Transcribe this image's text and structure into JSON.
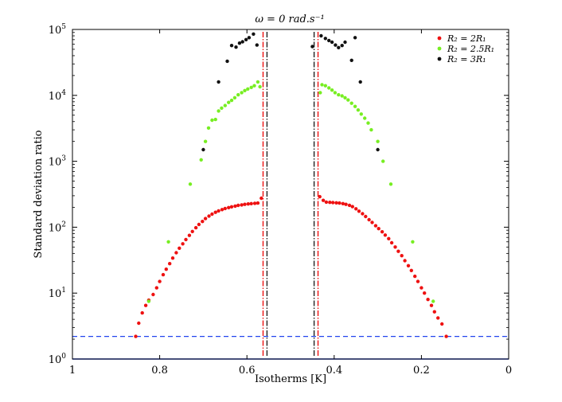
{
  "chart_data": {
    "type": "scatter",
    "title": "ω = 0 rad.s⁻¹",
    "xlabel": "Isotherms [K]",
    "ylabel": "Standard deviation ratio",
    "xlim": [
      1,
      0
    ],
    "ylim": [
      1,
      100000
    ],
    "yscale": "log",
    "xticks": [
      {
        "value": 1,
        "label": "1"
      },
      {
        "value": 0.8,
        "label": "0.8"
      },
      {
        "value": 0.6,
        "label": "0.6"
      },
      {
        "value": 0.4,
        "label": "0.4"
      },
      {
        "value": 0.2,
        "label": "0.2"
      },
      {
        "value": 0,
        "label": "0"
      }
    ],
    "yticks": [
      {
        "value": 1,
        "base": "10",
        "exp": "0"
      },
      {
        "value": 10,
        "base": "10",
        "exp": "1"
      },
      {
        "value": 100,
        "base": "10",
        "exp": "2"
      },
      {
        "value": 1000,
        "base": "10",
        "exp": "3"
      },
      {
        "value": 10000,
        "base": "10",
        "exp": "4"
      },
      {
        "value": 100000,
        "base": "10",
        "exp": "5"
      }
    ],
    "grid": false,
    "legend_position": "top-right",
    "series": [
      {
        "name": "R₂ = 2R₁",
        "color": "#ee1111",
        "points": [
          [
            0.855,
            2.2
          ],
          [
            0.848,
            3.5
          ],
          [
            0.84,
            5.0
          ],
          [
            0.832,
            6.5
          ],
          [
            0.825,
            7.8
          ],
          [
            0.815,
            9.5
          ],
          [
            0.807,
            12
          ],
          [
            0.8,
            15
          ],
          [
            0.792,
            19
          ],
          [
            0.785,
            23
          ],
          [
            0.777,
            28
          ],
          [
            0.77,
            34
          ],
          [
            0.762,
            41
          ],
          [
            0.755,
            48
          ],
          [
            0.747,
            56
          ],
          [
            0.74,
            65
          ],
          [
            0.732,
            75
          ],
          [
            0.725,
            86
          ],
          [
            0.717,
            98
          ],
          [
            0.71,
            110
          ],
          [
            0.702,
            122
          ],
          [
            0.695,
            135
          ],
          [
            0.687,
            147
          ],
          [
            0.68,
            158
          ],
          [
            0.672,
            168
          ],
          [
            0.665,
            177
          ],
          [
            0.657,
            185
          ],
          [
            0.65,
            192
          ],
          [
            0.642,
            198
          ],
          [
            0.635,
            204
          ],
          [
            0.627,
            209
          ],
          [
            0.62,
            214
          ],
          [
            0.612,
            218
          ],
          [
            0.605,
            222
          ],
          [
            0.597,
            225
          ],
          [
            0.59,
            228
          ],
          [
            0.582,
            230
          ],
          [
            0.575,
            232
          ],
          [
            0.567,
            275
          ],
          [
            0.433,
            290
          ],
          [
            0.425,
            255
          ],
          [
            0.418,
            240
          ],
          [
            0.41,
            238
          ],
          [
            0.403,
            236
          ],
          [
            0.395,
            234
          ],
          [
            0.388,
            232
          ],
          [
            0.38,
            228
          ],
          [
            0.373,
            222
          ],
          [
            0.365,
            215
          ],
          [
            0.358,
            205
          ],
          [
            0.35,
            190
          ],
          [
            0.343,
            175
          ],
          [
            0.335,
            160
          ],
          [
            0.328,
            145
          ],
          [
            0.32,
            130
          ],
          [
            0.313,
            118
          ],
          [
            0.305,
            105
          ],
          [
            0.298,
            95
          ],
          [
            0.29,
            85
          ],
          [
            0.283,
            76
          ],
          [
            0.275,
            67
          ],
          [
            0.268,
            58
          ],
          [
            0.26,
            50
          ],
          [
            0.253,
            43
          ],
          [
            0.245,
            37
          ],
          [
            0.238,
            31
          ],
          [
            0.23,
            26
          ],
          [
            0.223,
            22
          ],
          [
            0.215,
            18
          ],
          [
            0.208,
            15
          ],
          [
            0.2,
            12
          ],
          [
            0.193,
            10
          ],
          [
            0.185,
            8
          ],
          [
            0.177,
            6.5
          ],
          [
            0.17,
            5.2
          ],
          [
            0.162,
            4.2
          ],
          [
            0.153,
            3.4
          ],
          [
            0.143,
            2.2
          ]
        ]
      },
      {
        "name": "R₂ = 2.5R₁",
        "color": "#77ee22",
        "points": [
          [
            0.825,
            7.5
          ],
          [
            0.78,
            60
          ],
          [
            0.73,
            450
          ],
          [
            0.705,
            1050
          ],
          [
            0.695,
            2000
          ],
          [
            0.688,
            3200
          ],
          [
            0.68,
            4200
          ],
          [
            0.672,
            4300
          ],
          [
            0.665,
            5800
          ],
          [
            0.658,
            6400
          ],
          [
            0.65,
            7000
          ],
          [
            0.642,
            7800
          ],
          [
            0.635,
            8400
          ],
          [
            0.628,
            9200
          ],
          [
            0.62,
            10200
          ],
          [
            0.612,
            11000
          ],
          [
            0.605,
            11800
          ],
          [
            0.598,
            12500
          ],
          [
            0.59,
            13200
          ],
          [
            0.583,
            14000
          ],
          [
            0.575,
            16000
          ],
          [
            0.57,
            13500
          ],
          [
            0.432,
            11000
          ],
          [
            0.428,
            14500
          ],
          [
            0.42,
            14000
          ],
          [
            0.412,
            13000
          ],
          [
            0.405,
            12000
          ],
          [
            0.398,
            11000
          ],
          [
            0.39,
            10200
          ],
          [
            0.382,
            9800
          ],
          [
            0.375,
            9200
          ],
          [
            0.368,
            8500
          ],
          [
            0.36,
            7600
          ],
          [
            0.352,
            6800
          ],
          [
            0.345,
            6000
          ],
          [
            0.338,
            5200
          ],
          [
            0.33,
            4500
          ],
          [
            0.322,
            3800
          ],
          [
            0.315,
            3000
          ],
          [
            0.3,
            2000
          ],
          [
            0.288,
            1000
          ],
          [
            0.27,
            450
          ],
          [
            0.22,
            60
          ],
          [
            0.173,
            7.5
          ]
        ]
      },
      {
        "name": "R₂ = 3R₁",
        "color": "#111111",
        "points": [
          [
            0.7,
            1500
          ],
          [
            0.665,
            16000
          ],
          [
            0.645,
            33000
          ],
          [
            0.635,
            57000
          ],
          [
            0.625,
            54000
          ],
          [
            0.617,
            62000
          ],
          [
            0.61,
            65000
          ],
          [
            0.602,
            70000
          ],
          [
            0.595,
            75000
          ],
          [
            0.585,
            85000
          ],
          [
            0.577,
            58000
          ],
          [
            0.45,
            55000
          ],
          [
            0.43,
            80000
          ],
          [
            0.42,
            73000
          ],
          [
            0.412,
            68000
          ],
          [
            0.405,
            64000
          ],
          [
            0.397,
            58000
          ],
          [
            0.39,
            53000
          ],
          [
            0.382,
            57000
          ],
          [
            0.375,
            64000
          ],
          [
            0.36,
            34000
          ],
          [
            0.352,
            75000
          ],
          [
            0.34,
            16000
          ],
          [
            0.3,
            1500
          ]
        ]
      }
    ],
    "vertical_lines": [
      {
        "x": 0.563,
        "color": "#ee1111",
        "style": "dash-dot"
      },
      {
        "x": 0.437,
        "color": "#ee1111",
        "style": "dash-dot"
      },
      {
        "x": 0.554,
        "color": "#222222",
        "style": "dash-dot"
      },
      {
        "x": 0.446,
        "color": "#222222",
        "style": "dash-dot"
      }
    ],
    "horizontal_line": {
      "y": 2.2,
      "color": "#2244ee",
      "style": "dashed"
    },
    "baseline": {
      "y": 1,
      "color": "#2244ee"
    }
  }
}
